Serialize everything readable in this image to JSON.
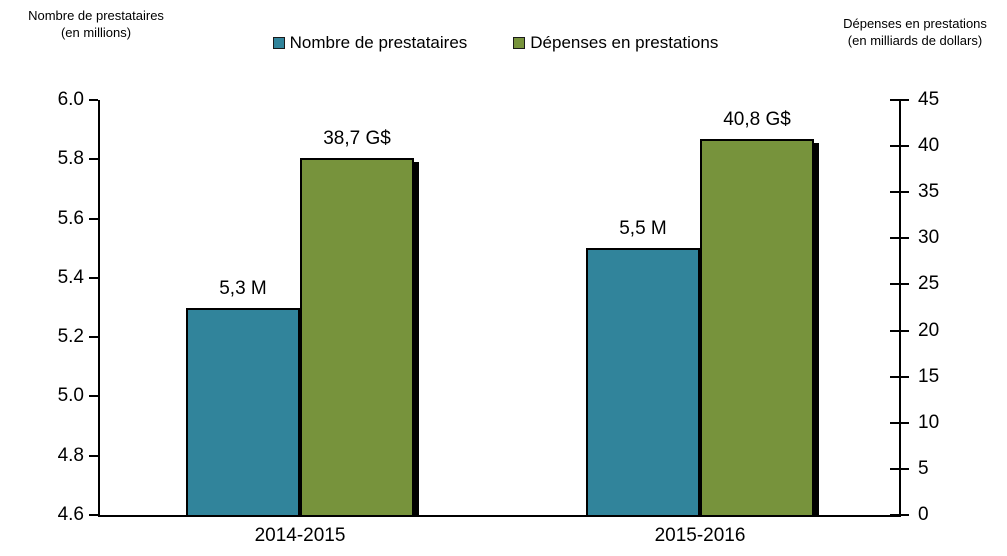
{
  "chart_data": {
    "type": "bar",
    "title": "",
    "categories": [
      "2014-2015",
      "2015-2016"
    ],
    "series": [
      {
        "name": "Nombre de prestataires",
        "axis": "left",
        "color": "#31849B",
        "values": [
          5.3,
          5.5
        ],
        "labels": [
          "5,3 M",
          "5,5 M"
        ],
        "shadow": false
      },
      {
        "name": "Dépenses en prestations",
        "axis": "right",
        "color": "#77933C",
        "values": [
          38.7,
          40.8
        ],
        "labels": [
          "38,7 G$",
          "40,8 G$"
        ],
        "shadow": true
      }
    ],
    "left_axis": {
      "title_line1": "Nombre de prestataires",
      "title_line2": "(en millions)",
      "min": 4.6,
      "max": 6.0,
      "step": 0.2,
      "tick_labels": [
        "6.0",
        "5.8",
        "5.6",
        "5.4",
        "5.2",
        "5.0",
        "4.8",
        "4.6"
      ]
    },
    "right_axis": {
      "title_line1": "Dépenses en prestations",
      "title_line2": "(en milliards de dollars)",
      "min": 0,
      "max": 45,
      "step": 5,
      "tick_labels": [
        "45",
        "40",
        "35",
        "30",
        "25",
        "20",
        "15",
        "10",
        "5",
        "0"
      ]
    },
    "legend": [
      {
        "label": "Nombre de prestataires",
        "color": "#31849B"
      },
      {
        "label": "Dépenses en prestations",
        "color": "#77933C"
      }
    ],
    "grid": false,
    "legend_position": "top",
    "colors": {
      "bar_border": "#000000",
      "axis": "#000000",
      "text": "#000000",
      "background": "#FFFFFF"
    }
  }
}
